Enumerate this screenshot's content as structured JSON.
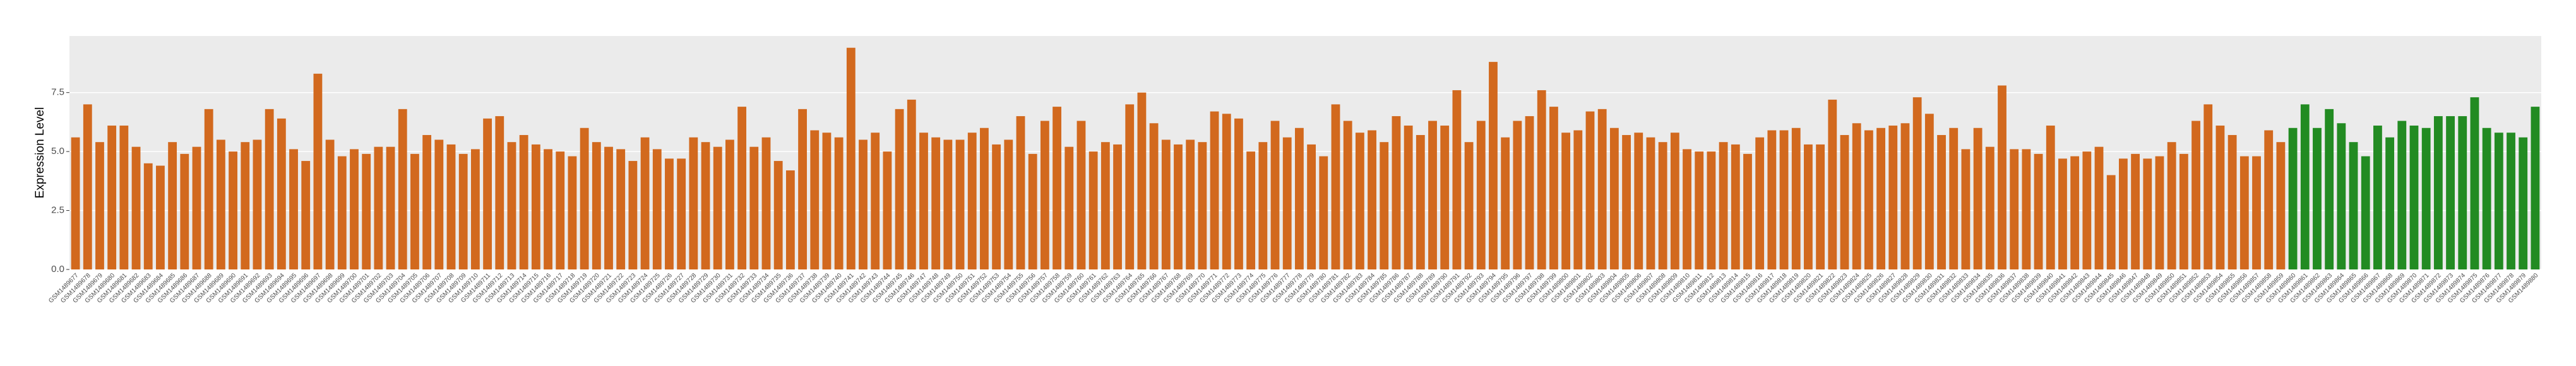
{
  "chart_data": {
    "type": "bar",
    "y_label": "Expression Level",
    "categories": [
      "GSM1489677",
      "GSM1489678",
      "GSM1489679",
      "GSM1489680",
      "GSM1489681",
      "GSM1489682",
      "GSM1489683",
      "GSM1489684",
      "GSM1489685",
      "GSM1489686",
      "GSM1489687",
      "GSM1489688",
      "GSM1489689",
      "GSM1489690",
      "GSM1489691",
      "GSM1489692",
      "GSM1489693",
      "GSM1489694",
      "GSM1489695",
      "GSM1489696",
      "GSM1489697",
      "GSM1489698",
      "GSM1489699",
      "GSM1489700",
      "GSM1489701",
      "GSM1489702",
      "GSM1489703",
      "GSM1489704",
      "GSM1489705",
      "GSM1489706",
      "GSM1489707",
      "GSM1489708",
      "GSM1489709",
      "GSM1489710",
      "GSM1489711",
      "GSM1489712",
      "GSM1489713",
      "GSM1489714",
      "GSM1489715",
      "GSM1489716",
      "GSM1489717",
      "GSM1489718",
      "GSM1489719",
      "GSM1489720",
      "GSM1489721",
      "GSM1489722",
      "GSM1489723",
      "GSM1489724",
      "GSM1489725",
      "GSM1489726",
      "GSM1489727",
      "GSM1489728",
      "GSM1489729",
      "GSM1489730",
      "GSM1489731",
      "GSM1489732",
      "GSM1489733",
      "GSM1489734",
      "GSM1489735",
      "GSM1489736",
      "GSM1489737",
      "GSM1489738",
      "GSM1489739",
      "GSM1489740",
      "GSM1489741",
      "GSM1489742",
      "GSM1489743",
      "GSM1489744",
      "GSM1489745",
      "GSM1489746",
      "GSM1489747",
      "GSM1489748",
      "GSM1489749",
      "GSM1489750",
      "GSM1489751",
      "GSM1489752",
      "GSM1489753",
      "GSM1489754",
      "GSM1489755",
      "GSM1489756",
      "GSM1489757",
      "GSM1489758",
      "GSM1489759",
      "GSM1489760",
      "GSM1489761",
      "GSM1489762",
      "GSM1489763",
      "GSM1489764",
      "GSM1489765",
      "GSM1489766",
      "GSM1489767",
      "GSM1489768",
      "GSM1489769",
      "GSM1489770",
      "GSM1489771",
      "GSM1489772",
      "GSM1489773",
      "GSM1489774",
      "GSM1489775",
      "GSM1489776",
      "GSM1489777",
      "GSM1489778",
      "GSM1489779",
      "GSM1489780",
      "GSM1489781",
      "GSM1489782",
      "GSM1489783",
      "GSM1489784",
      "GSM1489785",
      "GSM1489786",
      "GSM1489787",
      "GSM1489788",
      "GSM1489789",
      "GSM1489790",
      "GSM1489791",
      "GSM1489792",
      "GSM1489793",
      "GSM1489794",
      "GSM1489795",
      "GSM1489796",
      "GSM1489797",
      "GSM1489798",
      "GSM1489799",
      "GSM1489800",
      "GSM1489801",
      "GSM1489802",
      "GSM1489803",
      "GSM1489804",
      "GSM1489805",
      "GSM1489806",
      "GSM1489807",
      "GSM1489808",
      "GSM1489809",
      "GSM1489810",
      "GSM1489811",
      "GSM1489812",
      "GSM1489813",
      "GSM1489814",
      "GSM1489815",
      "GSM1489816",
      "GSM1489817",
      "GSM1489818",
      "GSM1489819",
      "GSM1489820",
      "GSM1489821",
      "GSM1489822",
      "GSM1489823",
      "GSM1489824",
      "GSM1489825",
      "GSM1489826",
      "GSM1489827",
      "GSM1489828",
      "GSM1489829",
      "GSM1489830",
      "GSM1489831",
      "GSM1489832",
      "GSM1489833",
      "GSM1489834",
      "GSM1489835",
      "GSM1489836",
      "GSM1489837",
      "GSM1489838",
      "GSM1489839",
      "GSM1489840",
      "GSM1489841",
      "GSM1489842",
      "GSM1489843",
      "GSM1489844",
      "GSM1489845",
      "GSM1489846",
      "GSM1489847",
      "GSM1489848",
      "GSM1489849",
      "GSM1489850",
      "GSM1489851",
      "GSM1489852",
      "GSM1489853",
      "GSM1489854",
      "GSM1489855",
      "GSM1489856",
      "GSM1489857",
      "GSM1489858",
      "GSM1489859",
      "GSM1489860",
      "GSM1489861",
      "GSM1489862",
      "GSM1489863",
      "GSM1489864",
      "GSM1489865",
      "GSM1489866",
      "GSM1489867",
      "GSM1489868",
      "GSM1489869",
      "GSM1489870",
      "GSM1489871",
      "GSM1489872",
      "GSM1489873",
      "GSM1489874",
      "GSM1489875",
      "GSM1489876",
      "GSM1489877",
      "GSM1489878",
      "GSM1489879",
      "GSM1489880"
    ],
    "values": [
      5.6,
      7.0,
      5.4,
      6.1,
      6.1,
      5.2,
      4.5,
      4.4,
      5.4,
      4.9,
      5.2,
      6.8,
      5.5,
      5.0,
      5.4,
      5.5,
      6.8,
      6.4,
      5.1,
      4.6,
      8.3,
      5.5,
      4.8,
      5.1,
      4.9,
      5.2,
      5.2,
      6.8,
      4.9,
      5.7,
      5.5,
      5.3,
      4.9,
      5.1,
      6.4,
      6.5,
      5.4,
      5.7,
      5.3,
      5.1,
      5.0,
      4.8,
      6.0,
      5.4,
      5.2,
      5.1,
      4.6,
      5.6,
      5.1,
      4.7,
      4.7,
      5.6,
      5.4,
      5.2,
      5.5,
      6.9,
      5.2,
      5.6,
      4.6,
      4.2,
      6.8,
      5.9,
      5.8,
      5.6,
      9.4,
      5.5,
      5.8,
      5.0,
      6.8,
      7.2,
      5.8,
      5.6,
      5.5,
      5.5,
      5.8,
      6.0,
      5.3,
      5.5,
      6.5,
      4.9,
      6.3,
      6.9,
      5.2,
      6.3,
      5.0,
      5.4,
      5.3,
      7.0,
      7.5,
      6.2,
      5.5,
      5.3,
      5.5,
      5.4,
      6.7,
      6.6,
      6.4,
      5.0,
      5.4,
      6.3,
      5.6,
      6.0,
      5.3,
      4.8,
      7.0,
      6.3,
      5.8,
      5.9,
      5.4,
      6.5,
      6.1,
      5.7,
      6.3,
      6.1,
      7.6,
      5.4,
      6.3,
      8.8,
      5.6,
      6.3,
      6.5,
      7.6,
      6.9,
      5.8,
      5.9,
      6.7,
      6.8,
      6.0,
      5.7,
      5.8,
      5.6,
      5.4,
      5.8,
      5.1,
      5.0,
      5.0,
      5.4,
      5.3,
      4.9,
      5.6,
      5.9,
      5.9,
      6.0,
      5.3,
      5.3,
      7.2,
      5.7,
      6.2,
      5.9,
      6.0,
      6.1,
      6.2,
      7.3,
      6.6,
      5.7,
      6.0,
      5.1,
      6.0,
      5.2,
      7.8,
      5.1,
      5.1,
      4.9,
      6.1,
      4.7,
      4.8,
      5.0,
      5.2,
      4.0,
      4.7,
      4.9,
      4.7,
      4.8,
      5.4,
      4.9,
      6.3,
      7.0,
      6.1,
      5.7,
      4.8,
      4.8,
      5.9,
      5.4,
      6.0,
      7.0,
      6.0,
      6.8,
      6.2,
      5.4,
      4.8,
      6.1,
      5.6,
      6.3,
      6.1,
      6.0,
      6.5,
      6.5,
      6.5,
      7.3,
      6.0,
      5.8,
      5.8,
      5.6,
      6.9
    ],
    "colors": [
      "#d2691e",
      "#d2691e",
      "#d2691e",
      "#d2691e",
      "#d2691e",
      "#d2691e",
      "#d2691e",
      "#d2691e",
      "#d2691e",
      "#d2691e",
      "#d2691e",
      "#d2691e",
      "#d2691e",
      "#d2691e",
      "#d2691e",
      "#d2691e",
      "#d2691e",
      "#d2691e",
      "#d2691e",
      "#d2691e",
      "#d2691e",
      "#d2691e",
      "#d2691e",
      "#d2691e",
      "#d2691e",
      "#d2691e",
      "#d2691e",
      "#d2691e",
      "#d2691e",
      "#d2691e",
      "#d2691e",
      "#d2691e",
      "#d2691e",
      "#d2691e",
      "#d2691e",
      "#d2691e",
      "#d2691e",
      "#d2691e",
      "#d2691e",
      "#d2691e",
      "#d2691e",
      "#d2691e",
      "#d2691e",
      "#d2691e",
      "#d2691e",
      "#d2691e",
      "#d2691e",
      "#d2691e",
      "#d2691e",
      "#d2691e",
      "#d2691e",
      "#d2691e",
      "#d2691e",
      "#d2691e",
      "#d2691e",
      "#d2691e",
      "#d2691e",
      "#d2691e",
      "#d2691e",
      "#d2691e",
      "#d2691e",
      "#d2691e",
      "#d2691e",
      "#d2691e",
      "#d2691e",
      "#d2691e",
      "#d2691e",
      "#d2691e",
      "#d2691e",
      "#d2691e",
      "#d2691e",
      "#d2691e",
      "#d2691e",
      "#d2691e",
      "#d2691e",
      "#d2691e",
      "#d2691e",
      "#d2691e",
      "#d2691e",
      "#d2691e",
      "#d2691e",
      "#d2691e",
      "#d2691e",
      "#d2691e",
      "#d2691e",
      "#d2691e",
      "#d2691e",
      "#d2691e",
      "#d2691e",
      "#d2691e",
      "#d2691e",
      "#d2691e",
      "#d2691e",
      "#d2691e",
      "#d2691e",
      "#d2691e",
      "#d2691e",
      "#d2691e",
      "#d2691e",
      "#d2691e",
      "#d2691e",
      "#d2691e",
      "#d2691e",
      "#d2691e",
      "#d2691e",
      "#d2691e",
      "#d2691e",
      "#d2691e",
      "#d2691e",
      "#d2691e",
      "#d2691e",
      "#d2691e",
      "#d2691e",
      "#d2691e",
      "#d2691e",
      "#d2691e",
      "#d2691e",
      "#d2691e",
      "#d2691e",
      "#d2691e",
      "#d2691e",
      "#d2691e",
      "#d2691e",
      "#d2691e",
      "#d2691e",
      "#d2691e",
      "#d2691e",
      "#d2691e",
      "#d2691e",
      "#d2691e",
      "#d2691e",
      "#d2691e",
      "#d2691e",
      "#d2691e",
      "#d2691e",
      "#d2691e",
      "#d2691e",
      "#d2691e",
      "#d2691e",
      "#d2691e",
      "#d2691e",
      "#d2691e",
      "#d2691e",
      "#d2691e",
      "#d2691e",
      "#d2691e",
      "#d2691e",
      "#d2691e",
      "#d2691e",
      "#d2691e",
      "#d2691e",
      "#d2691e",
      "#d2691e",
      "#d2691e",
      "#d2691e",
      "#d2691e",
      "#d2691e",
      "#d2691e",
      "#d2691e",
      "#d2691e",
      "#d2691e",
      "#d2691e",
      "#d2691e",
      "#d2691e",
      "#d2691e",
      "#d2691e",
      "#d2691e",
      "#d2691e",
      "#d2691e",
      "#d2691e",
      "#d2691e",
      "#d2691e",
      "#d2691e",
      "#d2691e",
      "#d2691e",
      "#d2691e",
      "#d2691e",
      "#d2691e",
      "#d2691e",
      "#d2691e",
      "#d2691e",
      "#d2691e",
      "#d2691e",
      "#228b22",
      "#228b22",
      "#228b22",
      "#228b22",
      "#228b22",
      "#228b22",
      "#228b22",
      "#228b22",
      "#228b22",
      "#228b22",
      "#228b22",
      "#228b22",
      "#228b22",
      "#228b22",
      "#228b22",
      "#228b22",
      "#228b22",
      "#228b22",
      "#228b22",
      "#228b22",
      "#228b22"
    ],
    "ylim": [
      0,
      9.9
    ],
    "yticks": [
      {
        "value": 0,
        "label": "0.0"
      },
      2.5,
      {
        "value": 5,
        "label": "5.0"
      },
      7.5
    ],
    "grid": true
  }
}
